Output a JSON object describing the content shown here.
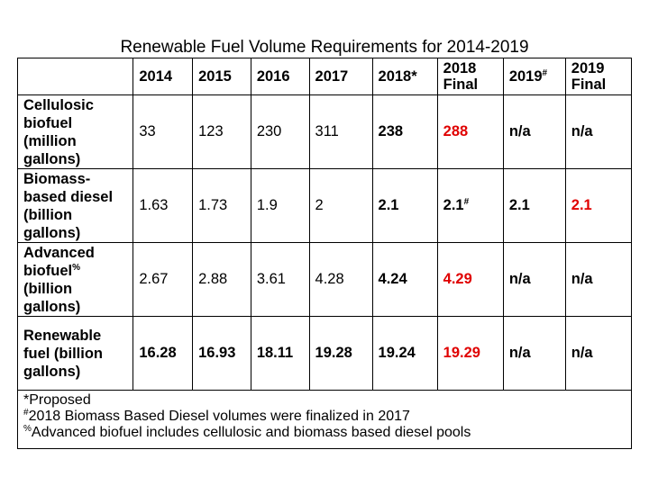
{
  "title": "Renewable Fuel Volume Requirements for 2014-2019",
  "chart_data": {
    "type": "table",
    "columns": [
      "",
      "2014",
      "2015",
      "2016",
      "2017",
      "2018*",
      "2018 Final",
      "2019#",
      "2019 Final"
    ],
    "rows": [
      {
        "label": "Cellulosic biofuel (million gallons)",
        "values": [
          "33",
          "123",
          "230",
          "311",
          "238",
          "288",
          "n/a",
          "n/a"
        ]
      },
      {
        "label": "Biomass-based diesel (billion gallons)",
        "values": [
          "1.63",
          "1.73",
          "1.9",
          "2",
          "2.1",
          "2.1#",
          "2.1",
          "2.1"
        ]
      },
      {
        "label": "Advanced biofuel% (billion gallons)",
        "values": [
          "2.67",
          "2.88",
          "3.61",
          "4.28",
          "4.24",
          "4.29",
          "n/a",
          "n/a"
        ]
      },
      {
        "label": "Renewable fuel (billion gallons)",
        "values": [
          "16.28",
          "16.93",
          "18.11",
          "19.28",
          "19.24",
          "19.29",
          "n/a",
          "n/a"
        ]
      }
    ],
    "highlight_color": "#e00000"
  },
  "header": {
    "c2014": "2014",
    "c2015": "2015",
    "c2016": "2016",
    "c2017": "2017",
    "c2018p": "2018*",
    "c2018f_1": "2018",
    "c2018f_2": "Final",
    "c2019": "2019",
    "c2019_sup": "#",
    "c2019f_1": "2019",
    "c2019f_2": "Final"
  },
  "rows": {
    "cell": {
      "label_lines": [
        "Cellulosic",
        "biofuel",
        "(million",
        "gallons)"
      ],
      "v": [
        "33",
        "123",
        "230",
        "311",
        "238",
        "288",
        "n/a",
        "n/a"
      ]
    },
    "bbd": {
      "label_lines": [
        "Biomass-",
        "based diesel",
        "(billion",
        "gallons)"
      ],
      "v": [
        "1.63",
        "1.73",
        "1.9",
        "2",
        "2.1",
        "2.1",
        "2.1",
        "2.1"
      ],
      "sup": "#"
    },
    "adv": {
      "label_lines": [
        "Advanced",
        "biofuel",
        "(billion",
        "gallons)"
      ],
      "label_sup": "%",
      "v": [
        "2.67",
        "2.88",
        "3.61",
        "4.28",
        "4.24",
        "4.29",
        "n/a",
        "n/a"
      ]
    },
    "ren": {
      "label_lines": [
        "Renewable",
        "fuel (billion",
        "gallons)"
      ],
      "v": [
        "16.28",
        "16.93",
        "18.11",
        "19.28",
        "19.24",
        "19.29",
        "n/a",
        "n/a"
      ]
    }
  },
  "notes": {
    "n1": "*Proposed",
    "n2_sym": "#",
    "n2": "2018 Biomass Based Diesel volumes were finalized in 2017",
    "n3_sym": "%",
    "n3": "Advanced biofuel includes cellulosic and biomass based diesel pools"
  }
}
